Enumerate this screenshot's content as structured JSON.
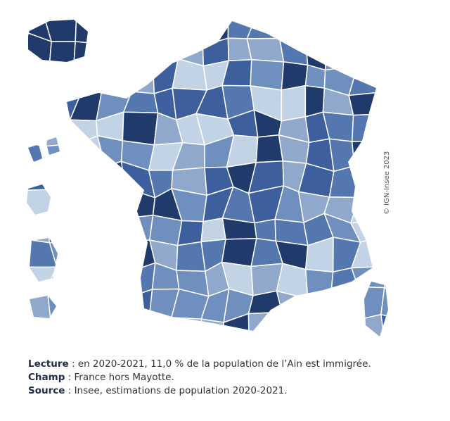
{
  "copyright": "© IGN-Insee 2023",
  "notes": [
    {
      "label": "Lecture",
      "text": ": en 2020-2021, 11,0 % de la population de l’Ain est immigrée."
    },
    {
      "label": "Champ",
      "text": ": France hors Mayotte."
    },
    {
      "label": "Source",
      "text": ": Insee, estimations de population 2020-2021."
    }
  ]
}
